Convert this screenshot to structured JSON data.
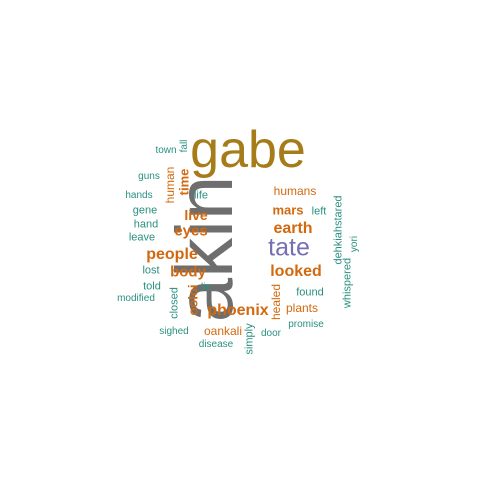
{
  "colors": {
    "gray": "#6e6e6e",
    "gold": "#a67c1a",
    "orange": "#d2690e",
    "purple": "#7570b3",
    "teal": "#2a9080"
  },
  "words": [
    {
      "text": "akin",
      "color": "gray"
    },
    {
      "text": "gabe",
      "color": "gold"
    },
    {
      "text": "tate",
      "color": "purple"
    },
    {
      "text": "looked",
      "color": "orange"
    },
    {
      "text": "people",
      "color": "orange"
    },
    {
      "text": "earth",
      "color": "orange"
    },
    {
      "text": "phoenix",
      "color": "orange"
    },
    {
      "text": "eyes",
      "color": "orange"
    },
    {
      "text": "body",
      "color": "orange"
    },
    {
      "text": "live",
      "color": "orange"
    },
    {
      "text": "mars",
      "color": "orange"
    },
    {
      "text": "time",
      "color": "orange"
    },
    {
      "text": "ooloi",
      "color": "orange"
    },
    {
      "text": "human",
      "color": "orange"
    },
    {
      "text": "humans",
      "color": "orange"
    },
    {
      "text": "oankali",
      "color": "orange"
    },
    {
      "text": "healed",
      "color": "orange"
    },
    {
      "text": "plants",
      "color": "orange"
    },
    {
      "text": "found",
      "color": "teal"
    },
    {
      "text": "left",
      "color": "teal"
    },
    {
      "text": "dehkiahstared",
      "color": "teal"
    },
    {
      "text": "whispered",
      "color": "teal"
    },
    {
      "text": "yori",
      "color": "teal"
    },
    {
      "text": "promise",
      "color": "teal"
    },
    {
      "text": "door",
      "color": "teal"
    },
    {
      "text": "simply",
      "color": "teal"
    },
    {
      "text": "disease",
      "color": "teal"
    },
    {
      "text": "sighed",
      "color": "teal"
    },
    {
      "text": "closed",
      "color": "teal"
    },
    {
      "text": "lie",
      "color": "teal"
    },
    {
      "text": "told",
      "color": "teal"
    },
    {
      "text": "modified",
      "color": "teal"
    },
    {
      "text": "lost",
      "color": "teal"
    },
    {
      "text": "leave",
      "color": "teal"
    },
    {
      "text": "hand",
      "color": "teal"
    },
    {
      "text": "gene",
      "color": "teal"
    },
    {
      "text": "hands",
      "color": "teal"
    },
    {
      "text": "guns",
      "color": "teal"
    },
    {
      "text": "life",
      "color": "teal"
    },
    {
      "text": "town",
      "color": "teal"
    },
    {
      "text": "fall",
      "color": "teal"
    }
  ]
}
